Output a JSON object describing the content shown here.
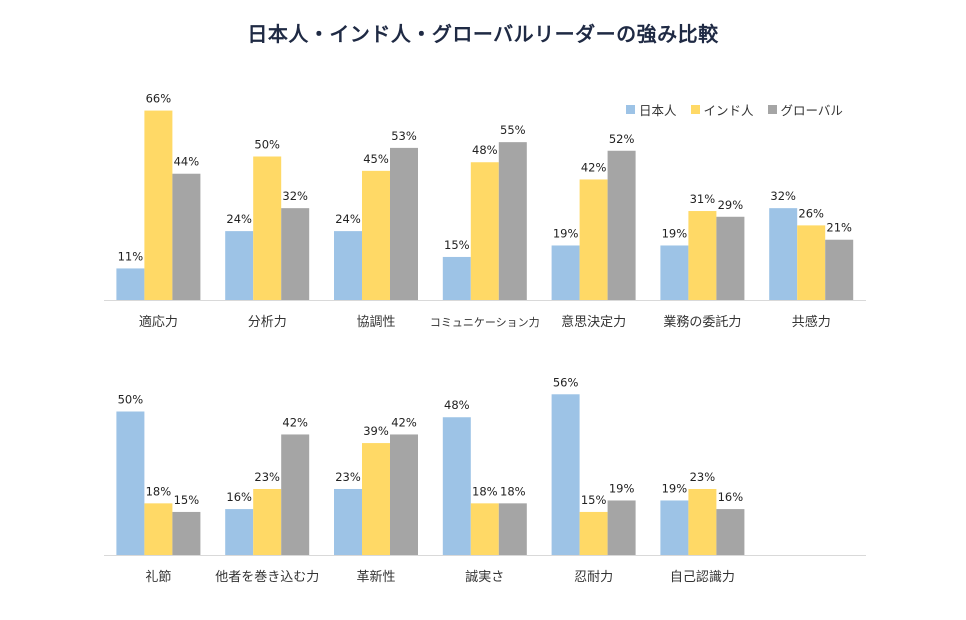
{
  "chart_data": {
    "type": "bar",
    "title": "日本人・インド人・グローバルリーダーの強み比較",
    "series_names": [
      "日本人",
      "インド人",
      "グローバル"
    ],
    "colors": [
      "#9dc3e6",
      "#ffd966",
      "#a5a5a5"
    ],
    "value_suffix": "%",
    "legend_position": "top-right",
    "panels": [
      {
        "categories": [
          "適応力",
          "分析力",
          "協調性",
          "コミュニケーション力",
          "意思決定力",
          "業務の委託力",
          "共感力"
        ],
        "series": [
          {
            "name": "日本人",
            "values": [
              11,
              24,
              24,
              15,
              19,
              19,
              32
            ]
          },
          {
            "name": "インド人",
            "values": [
              66,
              50,
              45,
              48,
              42,
              31,
              26
            ]
          },
          {
            "name": "グローバル",
            "values": [
              44,
              32,
              53,
              55,
              52,
              29,
              21
            ]
          }
        ]
      },
      {
        "categories": [
          "礼節",
          "他者を巻き込む力",
          "革新性",
          "誠実さ",
          "忍耐力",
          "自己認識力"
        ],
        "series": [
          {
            "name": "日本人",
            "values": [
              50,
              16,
              23,
              48,
              56,
              19
            ]
          },
          {
            "name": "インド人",
            "values": [
              18,
              23,
              39,
              18,
              15,
              23
            ]
          },
          {
            "name": "グローバル",
            "values": [
              15,
              42,
              42,
              18,
              19,
              16
            ]
          }
        ]
      }
    ]
  }
}
